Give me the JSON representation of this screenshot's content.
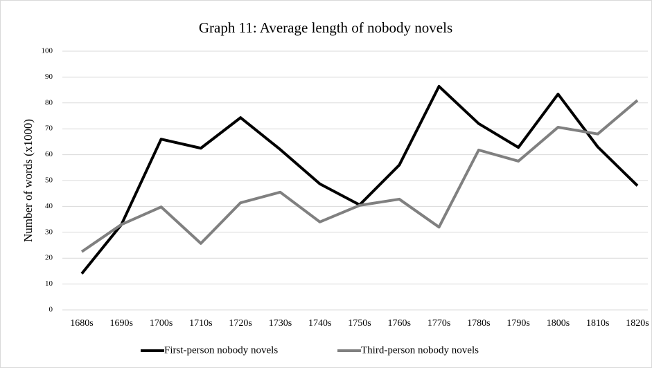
{
  "chart_data": {
    "type": "line",
    "title": "Graph 11: Average length of nobody novels",
    "y_label": "Number of words (x1000)",
    "categories": [
      "1680s",
      "1690s",
      "1700s",
      "1710s",
      "1720s",
      "1730s",
      "1740s",
      "1750s",
      "1760s",
      "1770s",
      "1780s",
      "1790s",
      "1800s",
      "1810s",
      "1820s"
    ],
    "series": [
      {
        "name": "First-person nobody novels",
        "color": "#000000",
        "values": [
          14,
          33,
          66,
          62.5,
          74.3,
          62,
          48.7,
          40.6,
          56,
          86.4,
          72,
          62.8,
          83.4,
          63,
          48
        ]
      },
      {
        "name": "Third-person nobody novels",
        "color": "#808080",
        "values": [
          22.5,
          33,
          39.8,
          25.7,
          41.4,
          45.5,
          34,
          40.4,
          42.8,
          32,
          61.8,
          57.5,
          70.6,
          68,
          81
        ]
      }
    ],
    "ylim": [
      0,
      100
    ],
    "yticks": [
      0,
      10,
      20,
      30,
      40,
      50,
      60,
      70,
      80,
      90,
      100
    ],
    "grid": true,
    "legend": "bottom"
  }
}
